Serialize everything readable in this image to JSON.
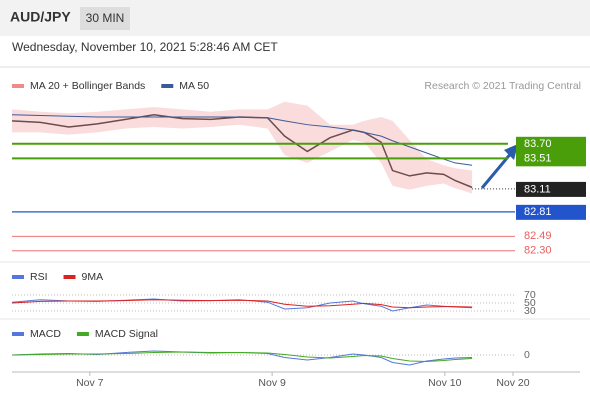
{
  "header": {
    "symbol": "AUD/JPY",
    "timeframe": "30 MIN",
    "datetime": "Wednesday, November 10, 2021 5:28:46 AM CET"
  },
  "chart_data": [
    {
      "type": "line",
      "credit": "Research © 2021 Trading Central",
      "x": [
        0,
        5,
        10,
        15,
        20,
        25,
        30,
        35,
        40,
        45,
        48,
        52,
        56,
        60,
        62,
        65,
        67,
        70,
        73,
        76,
        78,
        81
      ],
      "xlim": [
        0,
        100
      ],
      "ylim": [
        82.18,
        84.6
      ],
      "series": [
        {
          "color": "#333333",
          "values": [
            84.0,
            83.98,
            83.92,
            83.96,
            84.02,
            84.08,
            84.03,
            84.02,
            84.05,
            84.04,
            83.8,
            83.6,
            83.78,
            83.88,
            83.85,
            83.72,
            83.35,
            83.28,
            83.32,
            83.3,
            83.22,
            83.13
          ]
        },
        {
          "name": "MA 20 + Bollinger Bands",
          "type": "band",
          "color": "#f08a8a",
          "upper": [
            84.15,
            84.12,
            84.1,
            84.12,
            84.15,
            84.18,
            84.15,
            84.12,
            84.15,
            84.15,
            84.25,
            84.2,
            83.95,
            83.95,
            84.0,
            84.05,
            84.0,
            83.75,
            83.5,
            83.42,
            83.38,
            83.35
          ],
          "lower": [
            83.85,
            83.85,
            83.82,
            83.85,
            83.9,
            83.92,
            83.9,
            83.92,
            83.95,
            83.9,
            83.55,
            83.45,
            83.6,
            83.75,
            83.72,
            83.45,
            83.15,
            83.1,
            83.15,
            83.18,
            83.12,
            83.05
          ]
        },
        {
          "name": "MA 50",
          "color": "#3a5a9a",
          "values": [
            84.08,
            84.07,
            84.06,
            84.05,
            84.05,
            84.05,
            84.05,
            84.05,
            84.05,
            84.04,
            84.0,
            83.95,
            83.92,
            83.88,
            83.85,
            83.8,
            83.74,
            83.66,
            83.58,
            83.5,
            83.45,
            83.42
          ]
        }
      ],
      "levels": [
        {
          "value": 83.7,
          "label": "83.70",
          "color": "#4a9e0a",
          "style": "box"
        },
        {
          "value": 83.51,
          "label": "83.51",
          "color": "#4a9e0a",
          "style": "box"
        },
        {
          "value": 83.11,
          "label": "83.11",
          "color": "#222222",
          "style": "current"
        },
        {
          "value": 82.81,
          "label": "82.81",
          "color": "#2255cc",
          "style": "box"
        },
        {
          "value": 82.49,
          "label": "82.49",
          "color": "#e86060",
          "style": "text"
        },
        {
          "value": 82.3,
          "label": "82.30",
          "color": "#e86060",
          "style": "text"
        }
      ]
    },
    {
      "type": "line",
      "x": [
        0,
        5,
        10,
        15,
        20,
        25,
        30,
        35,
        40,
        45,
        48,
        52,
        56,
        60,
        62,
        65,
        67,
        70,
        73,
        76,
        78,
        81
      ],
      "xlim": [
        0,
        100
      ],
      "ylim": [
        12.5,
        95
      ],
      "yticks": [
        70,
        50,
        30
      ],
      "series": [
        {
          "name": "RSI",
          "color": "#5577dd",
          "values": [
            52,
            58,
            55,
            54,
            57,
            60,
            55,
            56,
            58,
            52,
            35,
            38,
            50,
            55,
            48,
            42,
            30,
            38,
            45,
            42,
            40,
            38
          ]
        },
        {
          "name": "9MA",
          "color": "#dd2222",
          "values": [
            50,
            54,
            55,
            55,
            56,
            58,
            57,
            56,
            57,
            55,
            47,
            42,
            43,
            47,
            49,
            46,
            40,
            38,
            40,
            41,
            41,
            40
          ]
        }
      ]
    },
    {
      "type": "line",
      "x": [
        0,
        5,
        10,
        15,
        20,
        25,
        30,
        35,
        40,
        45,
        48,
        52,
        56,
        60,
        62,
        65,
        67,
        70,
        73,
        76,
        78,
        81
      ],
      "xlim": [
        0,
        100
      ],
      "ylim": [
        -0.3,
        0.3
      ],
      "yticks": [
        0
      ],
      "xticks": [
        {
          "value": 13.7,
          "label": "Nov 7"
        },
        {
          "value": 45.8,
          "label": "Nov 9"
        },
        {
          "value": 76.2,
          "label": "Nov 10"
        },
        {
          "value": 88.2,
          "label": "Nov 20"
        }
      ],
      "series": [
        {
          "name": "MACD",
          "color": "#5577dd",
          "values": [
            0.0,
            0.02,
            0.03,
            0.01,
            0.05,
            0.08,
            0.06,
            0.04,
            0.05,
            0.03,
            -0.05,
            -0.1,
            -0.05,
            0.02,
            0.0,
            -0.05,
            -0.15,
            -0.2,
            -0.12,
            -0.08,
            -0.06,
            -0.05
          ]
        },
        {
          "name": "MACD Signal",
          "color": "#44aa22",
          "values": [
            0.0,
            0.01,
            0.02,
            0.02,
            0.03,
            0.05,
            0.06,
            0.05,
            0.05,
            0.04,
            0.01,
            -0.04,
            -0.06,
            -0.03,
            -0.01,
            -0.02,
            -0.07,
            -0.12,
            -0.13,
            -0.11,
            -0.09,
            -0.07
          ]
        }
      ]
    }
  ]
}
